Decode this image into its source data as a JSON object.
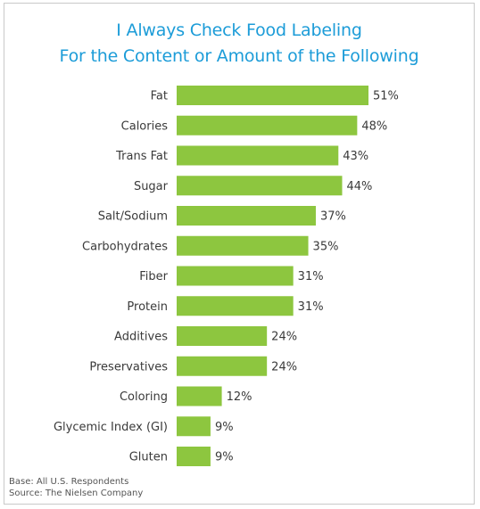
{
  "chart_data": {
    "type": "bar",
    "orientation": "horizontal",
    "title_lines": [
      "I Always Check Food Labeling",
      "For the Content or Amount of the Following"
    ],
    "categories": [
      "Fat",
      "Calories",
      "Trans Fat",
      "Sugar",
      "Salt/Sodium",
      "Carbohydrates",
      "Fiber",
      "Protein",
      "Additives",
      "Preservatives",
      "Coloring",
      "Glycemic Index (GI)",
      "Gluten"
    ],
    "values": [
      51,
      48,
      43,
      44,
      37,
      35,
      31,
      31,
      24,
      24,
      12,
      9,
      9
    ],
    "value_labels": [
      "51%",
      "48%",
      "43%",
      "44%",
      "37%",
      "35%",
      "31%",
      "31%",
      "24%",
      "24%",
      "12%",
      "9%",
      "9%"
    ],
    "unit": "%",
    "xlim": [
      0,
      51
    ],
    "bar_color": "#8dc63f",
    "grid": false,
    "legend": "none"
  },
  "footer": {
    "base": "Base:  All U.S. Respondents",
    "source": "Source:  The Nielsen Company"
  },
  "colors": {
    "title": "#1c9cd8",
    "bar": "#8dc63f"
  }
}
